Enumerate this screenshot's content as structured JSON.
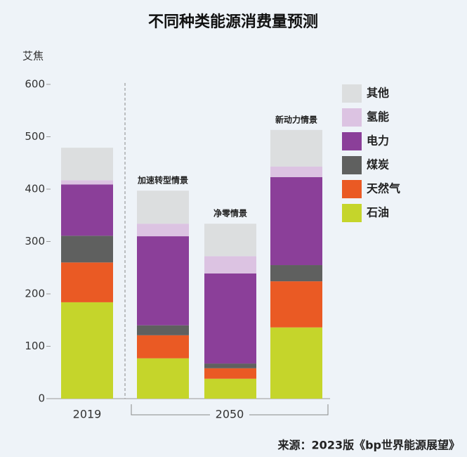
{
  "chart_data": {
    "type": "stacked_bar",
    "title": "不同种类能源消费量预测",
    "y_label": "艾焦",
    "source": "来源：2023版《bp世界能源展望》",
    "categories": [
      null,
      "加速转型情景",
      "净零情景",
      "新动力情景"
    ],
    "x_groups": [
      {
        "label": "2019",
        "count": 1
      },
      {
        "label": "2050",
        "count": 3
      }
    ],
    "series": [
      {
        "name": "石油",
        "color": "#c5d52b",
        "values": [
          184,
          77,
          38,
          136
        ]
      },
      {
        "name": "天然气",
        "color": "#ea5a24",
        "values": [
          76,
          44,
          20,
          88
        ]
      },
      {
        "name": "煤炭",
        "color": "#5f605f",
        "values": [
          51,
          19,
          9,
          31
        ]
      },
      {
        "name": "电力",
        "color": "#8b3f99",
        "values": [
          98,
          170,
          172,
          168
        ]
      },
      {
        "name": "氢能",
        "color": "#dcc3e2",
        "values": [
          8,
          24,
          33,
          20
        ]
      },
      {
        "name": "其他",
        "color": "#dcdedf",
        "values": [
          62,
          63,
          62,
          70
        ]
      }
    ],
    "ylim": [
      0,
      600
    ],
    "yticks": [
      0,
      100,
      200,
      300,
      400,
      500,
      600
    ]
  }
}
